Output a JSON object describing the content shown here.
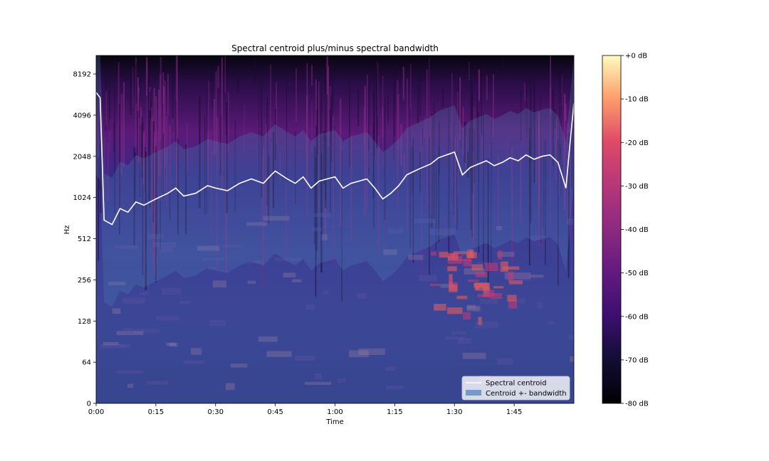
{
  "chart_data": {
    "type": "spectrogram",
    "title": "Spectral centroid plus/minus spectral bandwidth",
    "xlabel": "Time",
    "ylabel": "Hz",
    "x_ticks": [
      {
        "t": 0,
        "label": "0:00"
      },
      {
        "t": 15,
        "label": "0:15"
      },
      {
        "t": 30,
        "label": "0:30"
      },
      {
        "t": 45,
        "label": "0:45"
      },
      {
        "t": 60,
        "label": "1:00"
      },
      {
        "t": 75,
        "label": "1:15"
      },
      {
        "t": 90,
        "label": "1:30"
      },
      {
        "t": 105,
        "label": "1:45"
      }
    ],
    "xlim": [
      0,
      120
    ],
    "y_scale": "log2",
    "y_ticks": [
      0,
      64,
      128,
      256,
      512,
      1024,
      2048,
      4096,
      8192
    ],
    "y_tick_labels": [
      "0",
      "64",
      "128",
      "256",
      "512",
      "1024",
      "2048",
      "4096",
      "8192"
    ],
    "colorbar": {
      "colormap": "magma",
      "ticks": [
        0,
        -10,
        -20,
        -30,
        -40,
        -50,
        -60,
        -70,
        -80
      ],
      "tick_labels": [
        "+0 dB",
        "-10 dB",
        "-20 dB",
        "-30 dB",
        "-40 dB",
        "-50 dB",
        "-60 dB",
        "-70 dB",
        "-80 dB"
      ]
    },
    "series": [
      {
        "name": "Spectral centroid",
        "color": "#ffffff",
        "t": [
          0,
          1,
          2,
          4,
          6,
          8,
          10,
          12,
          15,
          18,
          20,
          22,
          25,
          28,
          30,
          33,
          36,
          39,
          42,
          44,
          45,
          48,
          50,
          52,
          54,
          56,
          58,
          60,
          62,
          64,
          66,
          68,
          70,
          72,
          74,
          76,
          78,
          80,
          82,
          84,
          86,
          88,
          90,
          92,
          94,
          96,
          98,
          100,
          102,
          104,
          106,
          108,
          110,
          112,
          114,
          116,
          118,
          119,
          120
        ],
        "hz": [
          6000,
          5500,
          700,
          650,
          850,
          800,
          950,
          900,
          1000,
          1100,
          1200,
          1050,
          1100,
          1250,
          1200,
          1150,
          1300,
          1400,
          1300,
          1500,
          1600,
          1400,
          1300,
          1450,
          1200,
          1350,
          1400,
          1450,
          1200,
          1300,
          1350,
          1400,
          1200,
          1000,
          1100,
          1250,
          1500,
          1600,
          1700,
          1800,
          2000,
          2100,
          2200,
          1500,
          1700,
          1800,
          1900,
          1750,
          1850,
          2000,
          1900,
          2100,
          1950,
          2050,
          2100,
          1850,
          1200,
          2500,
          5000
        ]
      },
      {
        "name": "Centroid +- bandwidth",
        "color": "#4a80b8"
      }
    ]
  }
}
